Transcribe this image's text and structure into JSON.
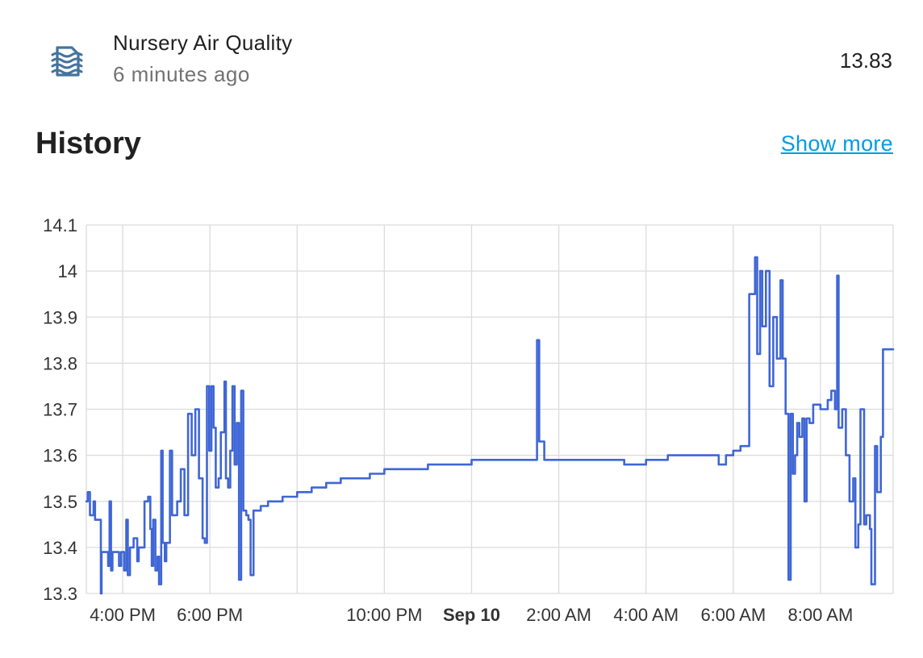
{
  "entity": {
    "icon": "air-filter-icon",
    "name": "Nursery Air Quality",
    "last_changed": "6 minutes ago",
    "state": "13.83"
  },
  "history": {
    "title": "History",
    "show_more": "Show more"
  },
  "colors": {
    "line": "#3f66d6",
    "grid": "#dcdcdc",
    "icon": "#44739e",
    "link": "#039be5"
  },
  "chart_data": {
    "type": "line",
    "title": "",
    "xlabel": "",
    "ylabel": "",
    "ylim": [
      13.3,
      14.1
    ],
    "y_ticks": [
      "13.3",
      "13.4",
      "13.5",
      "13.6",
      "13.7",
      "13.8",
      "13.9",
      "14",
      "14.1"
    ],
    "xlim": [
      "2023-09-09 15:10",
      "2023-09-10 09:40"
    ],
    "x_ticks": [
      {
        "time": "2023-09-09 16:00",
        "label": "4:00 PM",
        "bold": false
      },
      {
        "time": "2023-09-09 18:00",
        "label": "6:00 PM",
        "bold": false
      },
      {
        "time": "2023-09-09 20:00",
        "label": "",
        "bold": false
      },
      {
        "time": "2023-09-09 22:00",
        "label": "10:00 PM",
        "bold": false
      },
      {
        "time": "2023-09-10 00:00",
        "label": "Sep 10",
        "bold": true
      },
      {
        "time": "2023-09-10 02:00",
        "label": "2:00 AM",
        "bold": false
      },
      {
        "time": "2023-09-10 04:00",
        "label": "4:00 AM",
        "bold": false
      },
      {
        "time": "2023-09-10 06:00",
        "label": "6:00 AM",
        "bold": false
      },
      {
        "time": "2023-09-10 08:00",
        "label": "8:00 AM",
        "bold": false
      }
    ],
    "grid": true,
    "series": [
      {
        "points": [
          [
            "2023-09-09 15:10",
            13.5
          ],
          [
            "2023-09-09 15:12",
            13.52
          ],
          [
            "2023-09-09 15:15",
            13.47
          ],
          [
            "2023-09-09 15:20",
            13.5
          ],
          [
            "2023-09-09 15:22",
            13.46
          ],
          [
            "2023-09-09 15:30",
            13.3
          ],
          [
            "2023-09-09 15:31",
            13.39
          ],
          [
            "2023-09-09 15:40",
            13.36
          ],
          [
            "2023-09-09 15:42",
            13.5
          ],
          [
            "2023-09-09 15:44",
            13.35
          ],
          [
            "2023-09-09 15:46",
            13.39
          ],
          [
            "2023-09-09 15:55",
            13.36
          ],
          [
            "2023-09-09 15:58",
            13.39
          ],
          [
            "2023-09-09 16:02",
            13.35
          ],
          [
            "2023-09-09 16:05",
            13.46
          ],
          [
            "2023-09-09 16:07",
            13.34
          ],
          [
            "2023-09-09 16:10",
            13.4
          ],
          [
            "2023-09-09 16:15",
            13.42
          ],
          [
            "2023-09-09 16:20",
            13.37
          ],
          [
            "2023-09-09 16:22",
            13.4
          ],
          [
            "2023-09-09 16:30",
            13.5
          ],
          [
            "2023-09-09 16:35",
            13.51
          ],
          [
            "2023-09-09 16:38",
            13.44
          ],
          [
            "2023-09-09 16:40",
            13.36
          ],
          [
            "2023-09-09 16:42",
            13.46
          ],
          [
            "2023-09-09 16:45",
            13.35
          ],
          [
            "2023-09-09 16:48",
            13.38
          ],
          [
            "2023-09-09 16:50",
            13.32
          ],
          [
            "2023-09-09 16:53",
            13.61
          ],
          [
            "2023-09-09 16:55",
            13.41
          ],
          [
            "2023-09-09 16:58",
            13.37
          ],
          [
            "2023-09-09 17:00",
            13.41
          ],
          [
            "2023-09-09 17:05",
            13.61
          ],
          [
            "2023-09-09 17:08",
            13.47
          ],
          [
            "2023-09-09 17:15",
            13.5
          ],
          [
            "2023-09-09 17:20",
            13.57
          ],
          [
            "2023-09-09 17:25",
            13.47
          ],
          [
            "2023-09-09 17:30",
            13.69
          ],
          [
            "2023-09-09 17:35",
            13.6
          ],
          [
            "2023-09-09 17:40",
            13.7
          ],
          [
            "2023-09-09 17:45",
            13.55
          ],
          [
            "2023-09-09 17:50",
            13.42
          ],
          [
            "2023-09-09 17:53",
            13.41
          ],
          [
            "2023-09-09 17:56",
            13.75
          ],
          [
            "2023-09-09 17:59",
            13.61
          ],
          [
            "2023-09-09 18:02",
            13.75
          ],
          [
            "2023-09-09 18:05",
            13.66
          ],
          [
            "2023-09-09 18:08",
            13.53
          ],
          [
            "2023-09-09 18:12",
            13.55
          ],
          [
            "2023-09-09 18:15",
            13.65
          ],
          [
            "2023-09-09 18:20",
            13.76
          ],
          [
            "2023-09-09 18:22",
            13.55
          ],
          [
            "2023-09-09 18:25",
            13.53
          ],
          [
            "2023-09-09 18:28",
            13.61
          ],
          [
            "2023-09-09 18:31",
            13.75
          ],
          [
            "2023-09-09 18:34",
            13.58
          ],
          [
            "2023-09-09 18:37",
            13.67
          ],
          [
            "2023-09-09 18:40",
            13.33
          ],
          [
            "2023-09-09 18:43",
            13.74
          ],
          [
            "2023-09-09 18:46",
            13.48
          ],
          [
            "2023-09-09 18:50",
            13.47
          ],
          [
            "2023-09-09 18:53",
            13.46
          ],
          [
            "2023-09-09 18:56",
            13.34
          ],
          [
            "2023-09-09 19:00",
            13.48
          ],
          [
            "2023-09-09 19:10",
            13.49
          ],
          [
            "2023-09-09 19:20",
            13.5
          ],
          [
            "2023-09-09 19:40",
            13.51
          ],
          [
            "2023-09-09 20:00",
            13.52
          ],
          [
            "2023-09-09 20:20",
            13.53
          ],
          [
            "2023-09-09 20:40",
            13.54
          ],
          [
            "2023-09-09 21:00",
            13.55
          ],
          [
            "2023-09-09 21:20",
            13.55
          ],
          [
            "2023-09-09 21:40",
            13.56
          ],
          [
            "2023-09-09 22:00",
            13.57
          ],
          [
            "2023-09-09 22:30",
            13.57
          ],
          [
            "2023-09-09 23:00",
            13.58
          ],
          [
            "2023-09-09 23:30",
            13.58
          ],
          [
            "2023-09-10 00:00",
            13.59
          ],
          [
            "2023-09-10 00:30",
            13.59
          ],
          [
            "2023-09-10 01:00",
            13.59
          ],
          [
            "2023-09-10 01:20",
            13.59
          ],
          [
            "2023-09-10 01:30",
            13.85
          ],
          [
            "2023-09-10 01:33",
            13.63
          ],
          [
            "2023-09-10 01:40",
            13.59
          ],
          [
            "2023-09-10 02:00",
            13.59
          ],
          [
            "2023-09-10 03:00",
            13.59
          ],
          [
            "2023-09-10 03:30",
            13.58
          ],
          [
            "2023-09-10 04:00",
            13.59
          ],
          [
            "2023-09-10 04:30",
            13.6
          ],
          [
            "2023-09-10 05:00",
            13.6
          ],
          [
            "2023-09-10 05:30",
            13.6
          ],
          [
            "2023-09-10 05:40",
            13.58
          ],
          [
            "2023-09-10 05:50",
            13.6
          ],
          [
            "2023-09-10 06:00",
            13.61
          ],
          [
            "2023-09-10 06:10",
            13.62
          ],
          [
            "2023-09-10 06:20",
            13.62
          ],
          [
            "2023-09-10 06:22",
            13.95
          ],
          [
            "2023-09-10 06:30",
            14.03
          ],
          [
            "2023-09-10 06:33",
            13.82
          ],
          [
            "2023-09-10 06:37",
            14.0
          ],
          [
            "2023-09-10 06:40",
            13.88
          ],
          [
            "2023-09-10 06:45",
            14.0
          ],
          [
            "2023-09-10 06:50",
            13.75
          ],
          [
            "2023-09-10 06:55",
            13.9
          ],
          [
            "2023-09-10 07:00",
            13.81
          ],
          [
            "2023-09-10 07:05",
            13.98
          ],
          [
            "2023-09-10 07:08",
            13.81
          ],
          [
            "2023-09-10 07:12",
            13.69
          ],
          [
            "2023-09-10 07:16",
            13.33
          ],
          [
            "2023-09-10 07:19",
            13.69
          ],
          [
            "2023-09-10 07:22",
            13.56
          ],
          [
            "2023-09-10 07:25",
            13.6
          ],
          [
            "2023-09-10 07:28",
            13.67
          ],
          [
            "2023-09-10 07:31",
            13.64
          ],
          [
            "2023-09-10 07:35",
            13.68
          ],
          [
            "2023-09-10 07:38",
            13.5
          ],
          [
            "2023-09-10 07:41",
            13.68
          ],
          [
            "2023-09-10 07:45",
            13.67
          ],
          [
            "2023-09-10 07:50",
            13.71
          ],
          [
            "2023-09-10 08:00",
            13.7
          ],
          [
            "2023-09-10 08:10",
            13.72
          ],
          [
            "2023-09-10 08:15",
            13.74
          ],
          [
            "2023-09-10 08:20",
            13.7
          ],
          [
            "2023-09-10 08:23",
            13.99
          ],
          [
            "2023-09-10 08:25",
            13.66
          ],
          [
            "2023-09-10 08:30",
            13.7
          ],
          [
            "2023-09-10 08:35",
            13.6
          ],
          [
            "2023-09-10 08:40",
            13.5
          ],
          [
            "2023-09-10 08:45",
            13.55
          ],
          [
            "2023-09-10 08:48",
            13.4
          ],
          [
            "2023-09-10 08:52",
            13.45
          ],
          [
            "2023-09-10 08:55",
            13.7
          ],
          [
            "2023-09-10 09:00",
            13.45
          ],
          [
            "2023-09-10 09:03",
            13.47
          ],
          [
            "2023-09-10 09:08",
            13.44
          ],
          [
            "2023-09-10 09:10",
            13.32
          ],
          [
            "2023-09-10 09:15",
            13.62
          ],
          [
            "2023-09-10 09:18",
            13.52
          ],
          [
            "2023-09-10 09:21",
            13.52
          ],
          [
            "2023-09-10 09:23",
            13.64
          ],
          [
            "2023-09-10 09:26",
            13.83
          ],
          [
            "2023-09-10 09:40",
            13.83
          ]
        ]
      }
    ]
  }
}
